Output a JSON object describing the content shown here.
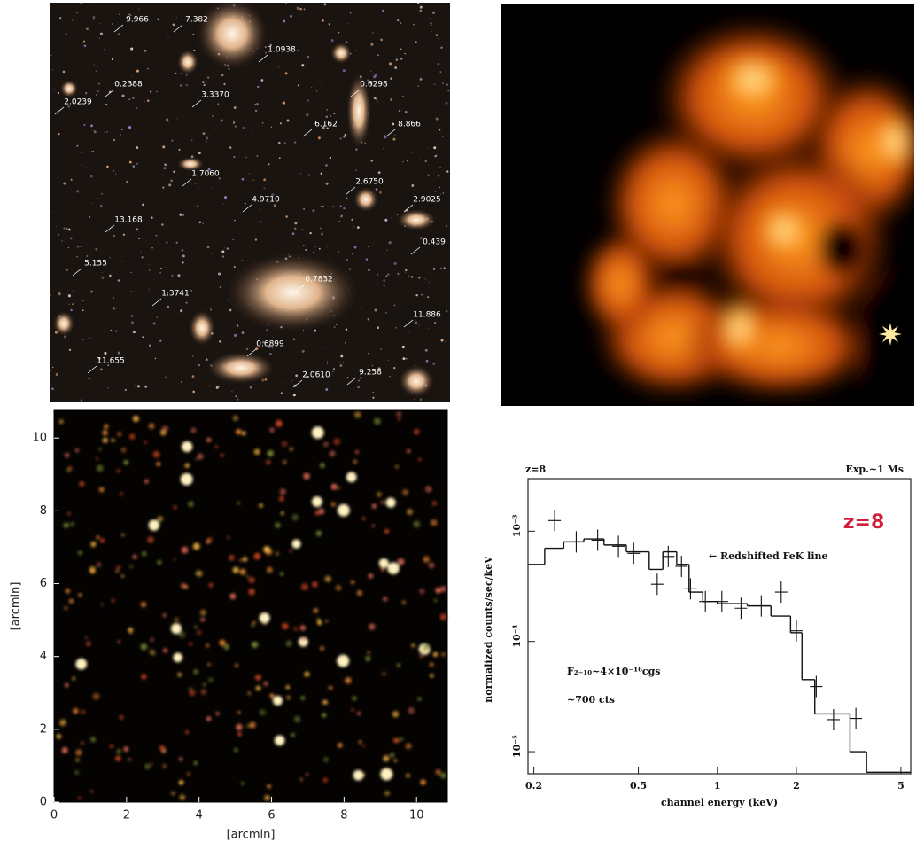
{
  "galaxy_field": {
    "labels": [
      "9.966",
      "7.382",
      "1.0938",
      "0.2388",
      "2.0239",
      "3.3370",
      "0.6298",
      "6.162",
      "8.866",
      "1.7060",
      "4.9710",
      "2.6750",
      "2.9025",
      "13.168",
      "0.439",
      "5.155",
      "0.7832",
      "1.3741",
      "11.886",
      "0.6899",
      "11.655",
      "2.0610",
      "9.258"
    ]
  },
  "chart_data": [
    {
      "type": "image",
      "xlim": [
        0,
        10.85
      ],
      "ylim": [
        0,
        10.76
      ],
      "xticks": [
        0,
        2,
        4,
        6,
        8,
        10
      ],
      "yticks": [
        0,
        2,
        4,
        6,
        8,
        10
      ],
      "xlabel": "[arcmin]",
      "ylabel": "[arcmin]"
    },
    {
      "type": "step",
      "title": "z=8",
      "panel_label": "z=8",
      "subtitle": "Exp.~1 Ms",
      "xlabel": "channel energy (keV)",
      "ylabel": "normalized counts/sec/keV",
      "annotations": [
        "← Redshifted FeK line",
        "F₂₋₁₀~4×10⁻¹⁶cgs",
        "~700 cts"
      ],
      "log_x": true,
      "log_y": true,
      "color": "#111111",
      "title_color": "#d0203a",
      "xlim": [
        0.19,
        5.45
      ],
      "ylim": [
        6.3e-06,
        0.003
      ],
      "xticks": [
        0.2,
        0.5,
        1,
        2,
        5
      ],
      "yticks": [
        {
          "value": 1e-05,
          "label": "10⁻⁵"
        },
        {
          "value": 0.0001,
          "label": "10⁻⁴"
        },
        {
          "value": 0.001,
          "label": "10⁻³"
        }
      ],
      "data": {
        "x": [
          0.24,
          0.29,
          0.35,
          0.42,
          0.48,
          0.59,
          0.65,
          0.73,
          0.79,
          0.9,
          1.04,
          1.23,
          1.47,
          1.75,
          2.0,
          2.38,
          2.77,
          3.37
        ],
        "y": [
          0.00125,
          0.0008,
          0.00083,
          0.00073,
          0.00063,
          0.00033,
          0.00059,
          0.00048,
          0.0003,
          0.00023,
          0.00023,
          0.0002,
          0.00021,
          0.00028,
          0.000125,
          3.9e-05,
          1.95e-05,
          2e-05
        ]
      },
      "model": {
        "bins": [
          0.19,
          0.22,
          0.26,
          0.31,
          0.37,
          0.45,
          0.55,
          0.62,
          0.7,
          0.78,
          0.88,
          1.0,
          1.3,
          1.6,
          1.9,
          2.1,
          2.35,
          3.2,
          3.7,
          5.45
        ],
        "values": [
          0.0005,
          0.0007,
          0.0008,
          0.00085,
          0.00075,
          0.00065,
          0.00045,
          0.00065,
          0.0005,
          0.00028,
          0.00023,
          0.00022,
          0.00021,
          0.00017,
          0.00012,
          4.5e-05,
          2.2e-05,
          1e-05,
          6.5e-06
        ]
      }
    }
  ]
}
